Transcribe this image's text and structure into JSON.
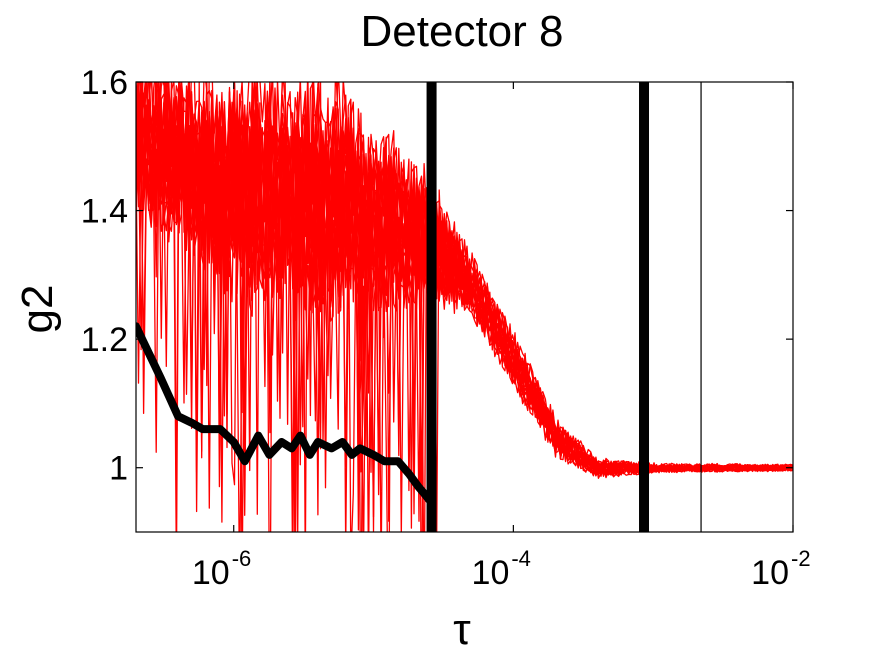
{
  "chart_data": {
    "type": "line",
    "title": "Detector 8",
    "xlabel": "τ",
    "ylabel": "g2",
    "xscale": "log",
    "xlim": [
      2e-07,
      0.01
    ],
    "ylim": [
      0.9,
      1.6
    ],
    "grid": false,
    "x_ticks": [
      {
        "base": "10",
        "exp": "-6",
        "value": 1e-06
      },
      {
        "base": "10",
        "exp": "-4",
        "value": 0.0001
      },
      {
        "base": "10",
        "exp": "-2",
        "value": 0.01
      }
    ],
    "y_ticks": [
      {
        "label": "1",
        "value": 1.0
      },
      {
        "label": "1.2",
        "value": 1.2
      },
      {
        "label": "1.4",
        "value": 1.4
      },
      {
        "label": "1.6",
        "value": 1.6
      }
    ],
    "colors": {
      "traces": "#ff0000",
      "highlight": "#000000",
      "axes": "#000000"
    },
    "red_trace_count": 22,
    "red_trace_envelope": {
      "tau": [
        2e-07,
        1e-06,
        5e-06,
        2.5e-05,
        5e-05,
        0.0001,
        0.0002,
        0.0004,
        0.001,
        0.01
      ],
      "g2_mean": [
        1.53,
        1.45,
        1.44,
        1.36,
        1.29,
        1.17,
        1.05,
        1.0,
        1.0,
        1.0
      ],
      "noise": [
        0.1,
        0.14,
        0.15,
        0.08,
        0.04,
        0.035,
        0.025,
        0.012,
        0.006,
        0.004
      ]
    },
    "black_series": {
      "tau": [
        2e-07,
        3e-07,
        4e-07,
        5e-07,
        6e-07,
        8e-07,
        1e-06,
        1.2e-06,
        1.5e-06,
        1.8e-06,
        2.2e-06,
        2.6e-06,
        3e-06,
        3.5e-06,
        4e-06,
        5e-06,
        6e-06,
        7e-06,
        8e-06,
        1e-05,
        1.2e-05,
        1.5e-05,
        1.8e-05,
        2.1e-05,
        2.3e-05,
        2.5e-05
      ],
      "g2": [
        1.22,
        1.14,
        1.08,
        1.07,
        1.06,
        1.06,
        1.04,
        1.01,
        1.05,
        1.02,
        1.04,
        1.03,
        1.05,
        1.02,
        1.04,
        1.03,
        1.04,
        1.02,
        1.03,
        1.02,
        1.01,
        1.01,
        0.99,
        0.97,
        0.96,
        0.95
      ]
    },
    "vertical_markers": [
      {
        "tau": 2.6e-05,
        "style": "thick"
      },
      {
        "tau": 0.00086,
        "style": "thick"
      },
      {
        "tau": 0.0022,
        "style": "thin"
      }
    ]
  }
}
